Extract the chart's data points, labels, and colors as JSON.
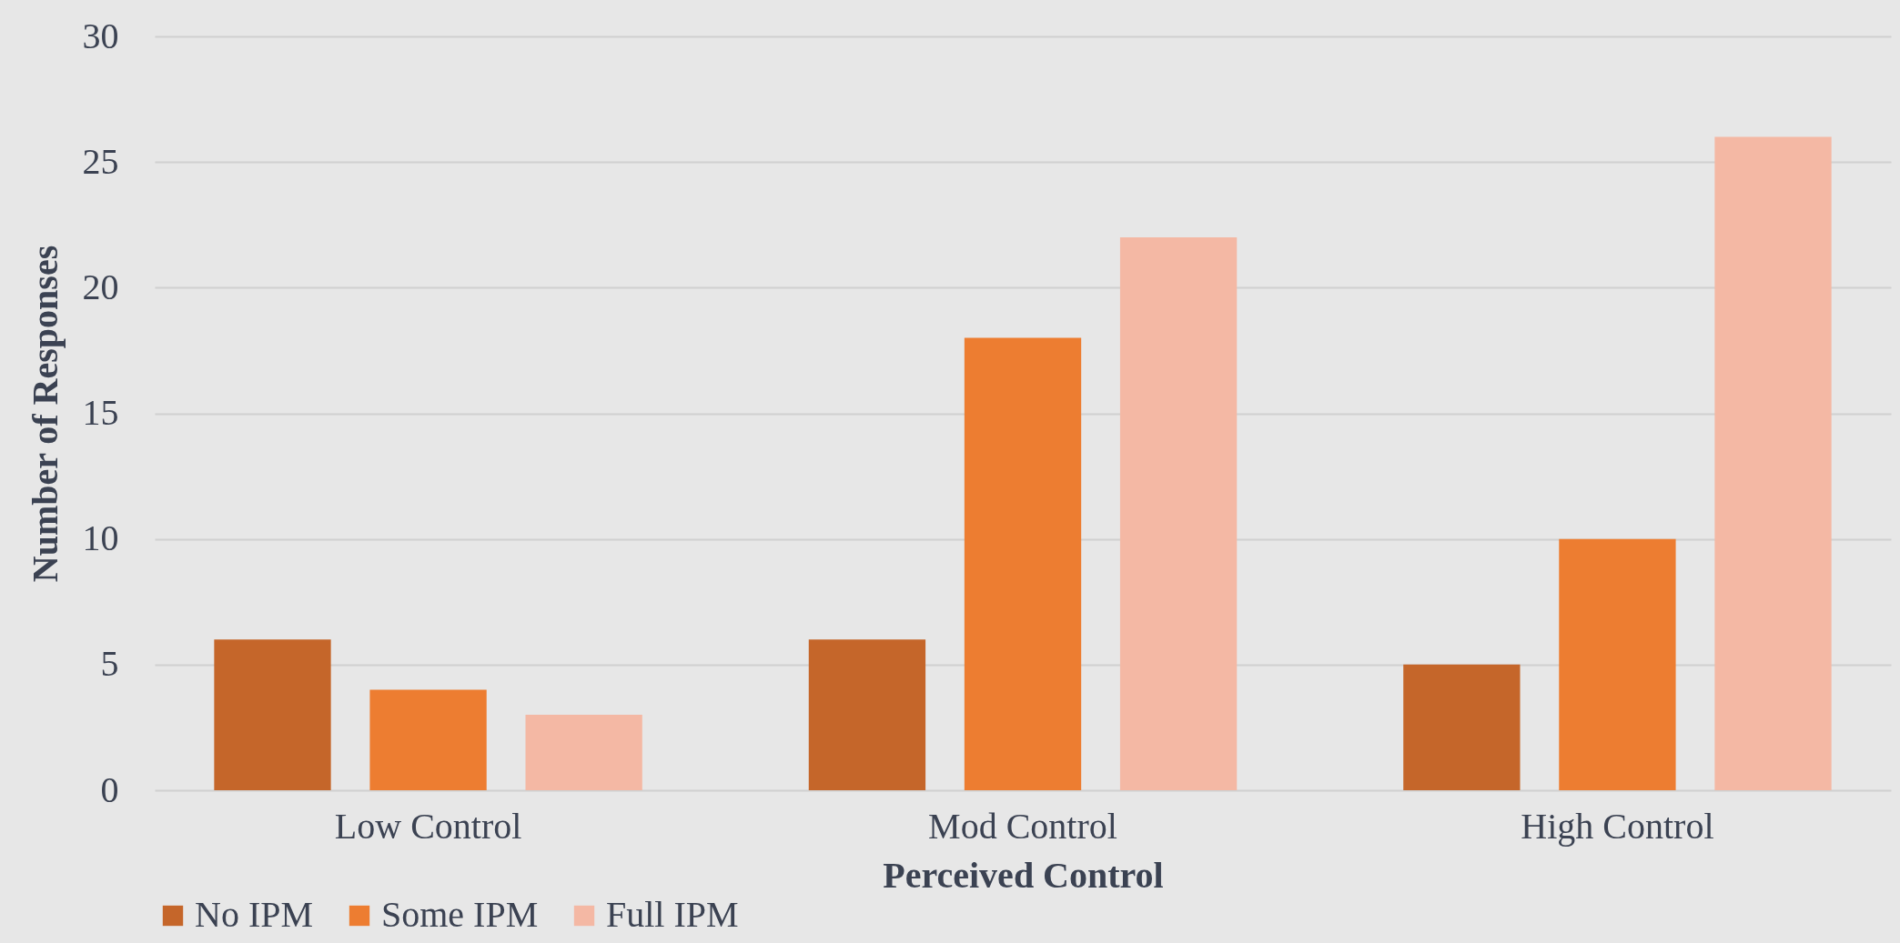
{
  "chart_data": {
    "type": "bar",
    "xlabel": "Perceived Control",
    "ylabel": "Number of Responses",
    "categories": [
      "Low Control",
      "Mod Control",
      "High Control"
    ],
    "series": [
      {
        "name": "No IPM",
        "color": "#c5662a",
        "values": [
          6,
          6,
          5
        ]
      },
      {
        "name": "Some IPM",
        "color": "#ed7d31",
        "values": [
          4,
          18,
          10
        ]
      },
      {
        "name": "Full IPM",
        "color": "#f4b8a4",
        "values": [
          3,
          22,
          26
        ]
      }
    ],
    "ylim": [
      0,
      30
    ],
    "yticks": [
      0,
      5,
      10,
      15,
      20,
      25,
      30
    ],
    "grid": "y",
    "legend": "bottom"
  }
}
